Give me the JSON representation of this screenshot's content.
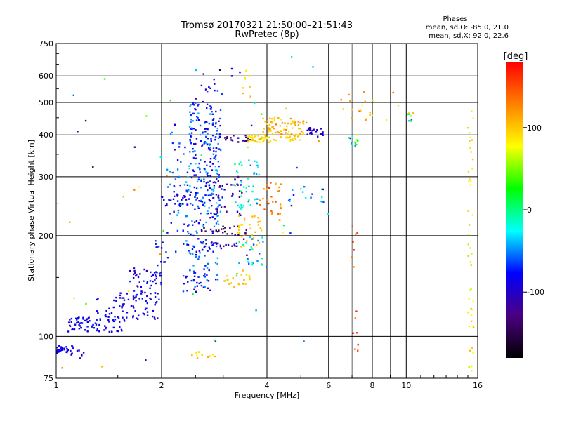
{
  "chart_data": {
    "type": "scatter",
    "title": "Tromsø 20170321 21:50:00–21:51:43",
    "subtitle": "RwPretec (8p)",
    "xlabel": "Frequency [MHz]",
    "ylabel": "Stationary phase Virtual Height [km]",
    "x_scale": "log",
    "y_scale": "log",
    "xlim": [
      1,
      16
    ],
    "ylim": [
      75,
      750
    ],
    "x_ticks": [
      "1",
      "2",
      "4",
      "6",
      "8",
      "10",
      "16"
    ],
    "y_ticks": [
      "75",
      "100",
      "200",
      "300",
      "400",
      "500",
      "600",
      "750"
    ],
    "x_grid": [
      1,
      2,
      4,
      6,
      8,
      10,
      16
    ],
    "y_grid": [
      75,
      100,
      200,
      300,
      400,
      500,
      600,
      750
    ],
    "grid": true,
    "phase_box": {
      "title": "Phases",
      "line1": "mean, sd,O: -85.0, 21.0",
      "line2": "mean, sd,X: 92.0, 22.6"
    },
    "colorbar": {
      "label": "[deg]",
      "ticks": [
        "100",
        "0",
        "-100"
      ],
      "tick_values": [
        100,
        0,
        -100
      ],
      "range": [
        -180,
        180
      ],
      "colors": [
        "#000000",
        "#4b0082",
        "#0000ff",
        "#00ffff",
        "#00ff00",
        "#ffff00",
        "#ff8000",
        "#ff0000"
      ]
    },
    "clusters": [
      {
        "x": [
          1.0,
          1.12
        ],
        "y": [
          88,
          94
        ],
        "phase": [
          -95,
          -75
        ],
        "n": 35
      },
      {
        "x": [
          1.12,
          1.2
        ],
        "y": [
          86,
          92
        ],
        "phase": [
          -110,
          -90
        ],
        "n": 6
      },
      {
        "x": [
          1.08,
          1.6
        ],
        "y": [
          103,
          114
        ],
        "phase": [
          -100,
          -70
        ],
        "n": 75
      },
      {
        "x": [
          1.3,
          1.95
        ],
        "y": [
          112,
          135
        ],
        "phase": [
          -105,
          -70
        ],
        "n": 70
      },
      {
        "x": [
          1.6,
          2.0
        ],
        "y": [
          128,
          160
        ],
        "phase": [
          -115,
          -65
        ],
        "n": 55
      },
      {
        "x": [
          1.9,
          2.2
        ],
        "y": [
          160,
          200
        ],
        "phase": [
          -95,
          -60
        ],
        "n": 14
      },
      {
        "x": [
          2.05,
          2.35
        ],
        "y": [
          200,
          420
        ],
        "phase": [
          -100,
          -40
        ],
        "n": 40
      },
      {
        "x": [
          2.0,
          2.4
        ],
        "y": [
          245,
          265
        ],
        "phase": [
          -110,
          -80
        ],
        "n": 25
      },
      {
        "x": [
          2.3,
          2.9
        ],
        "y": [
          135,
          210
        ],
        "phase": [
          -100,
          -40
        ],
        "n": 90
      },
      {
        "x": [
          2.35,
          2.95
        ],
        "y": [
          210,
          340
        ],
        "phase": [
          -100,
          -30
        ],
        "n": 140
      },
      {
        "x": [
          2.4,
          2.95
        ],
        "y": [
          340,
          500
        ],
        "phase": [
          -105,
          -40
        ],
        "n": 120
      },
      {
        "x": [
          2.6,
          3.0
        ],
        "y": [
          500,
          610
        ],
        "phase": [
          -110,
          -60
        ],
        "n": 12
      },
      {
        "x": [
          2.6,
          3.5
        ],
        "y": [
          200,
          215
        ],
        "phase": [
          -160,
          -120
        ],
        "n": 25
      },
      {
        "x": [
          2.6,
          3.3
        ],
        "y": [
          183,
          192
        ],
        "phase": [
          -120,
          -90
        ],
        "n": 22
      },
      {
        "x": [
          2.8,
          3.4
        ],
        "y": [
          230,
          300
        ],
        "phase": [
          -140,
          -80
        ],
        "n": 40
      },
      {
        "x": [
          3.0,
          3.6
        ],
        "y": [
          380,
          400
        ],
        "phase": [
          -150,
          -90
        ],
        "n": 20
      },
      {
        "x": [
          3.0,
          3.6
        ],
        "y": [
          140,
          160
        ],
        "phase": [
          90,
          115
        ],
        "n": 20
      },
      {
        "x": [
          3.2,
          3.8
        ],
        "y": [
          240,
          340
        ],
        "phase": [
          -60,
          10
        ],
        "n": 45
      },
      {
        "x": [
          3.3,
          3.9
        ],
        "y": [
          160,
          200
        ],
        "phase": [
          -70,
          10
        ],
        "n": 25
      },
      {
        "x": [
          3.3,
          3.85
        ],
        "y": [
          180,
          230
        ],
        "phase": [
          90,
          115
        ],
        "n": 30
      },
      {
        "x": [
          3.4,
          3.6
        ],
        "y": [
          500,
          640
        ],
        "phase": [
          80,
          110
        ],
        "n": 8
      },
      {
        "x": [
          3.5,
          4.0
        ],
        "y": [
          380,
          400
        ],
        "phase": [
          70,
          110
        ],
        "n": 35
      },
      {
        "x": [
          3.8,
          4.4
        ],
        "y": [
          220,
          290
        ],
        "phase": [
          110,
          160
        ],
        "n": 30
      },
      {
        "x": [
          3.9,
          5.2
        ],
        "y": [
          400,
          450
        ],
        "phase": [
          90,
          130
        ],
        "n": 70
      },
      {
        "x": [
          4.0,
          5.0
        ],
        "y": [
          380,
          400
        ],
        "phase": [
          80,
          110
        ],
        "n": 25
      },
      {
        "x": [
          5.2,
          5.8
        ],
        "y": [
          395,
          420
        ],
        "phase": [
          -110,
          -80
        ],
        "n": 25
      },
      {
        "x": [
          4.5,
          5.8
        ],
        "y": [
          250,
          280
        ],
        "phase": [
          -80,
          0
        ],
        "n": 15
      },
      {
        "x": [
          6.8,
          7.3
        ],
        "y": [
          370,
          400
        ],
        "phase": [
          -90,
          80
        ],
        "n": 12
      },
      {
        "x": [
          7.0,
          7.3
        ],
        "y": [
          90,
          230
        ],
        "phase": [
          110,
          170
        ],
        "n": 14
      },
      {
        "x": [
          6.5,
          9.5
        ],
        "y": [
          440,
          540
        ],
        "phase": [
          70,
          140
        ],
        "n": 20
      },
      {
        "x": [
          10.0,
          11.0
        ],
        "y": [
          440,
          480
        ],
        "phase": [
          -100,
          120
        ],
        "n": 8
      },
      {
        "x": [
          15.0,
          15.6
        ],
        "y": [
          76,
          500
        ],
        "phase": [
          60,
          110
        ],
        "n": 45
      },
      {
        "x": [
          2.4,
          2.9
        ],
        "y": [
          86,
          90
        ],
        "phase": [
          80,
          110
        ],
        "n": 12
      },
      {
        "x": [
          1.0,
          6.0
        ],
        "y": [
          80,
          700
        ],
        "phase": [
          -150,
          150
        ],
        "n": 60
      }
    ]
  }
}
